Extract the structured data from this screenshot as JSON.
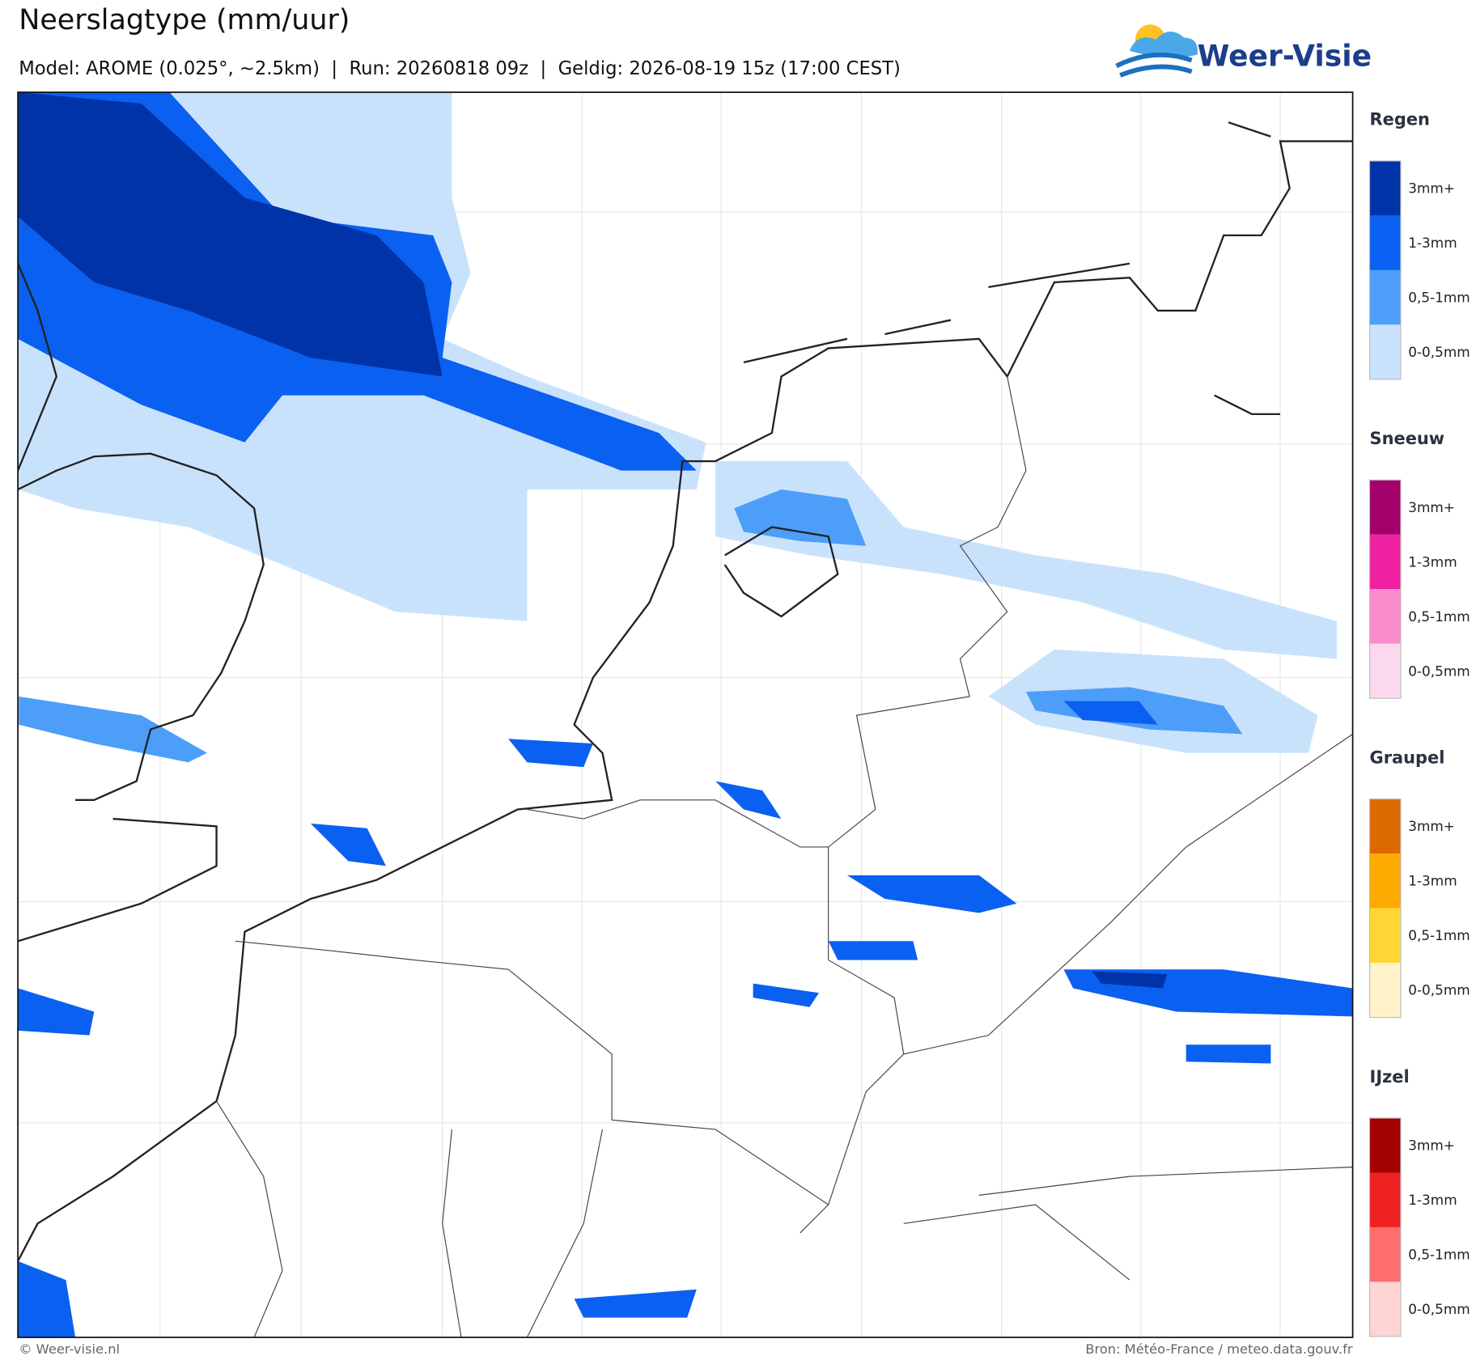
{
  "header": {
    "title": "Neerslagtype (mm/uur)",
    "subtitle": "Model: AROME (0.025°, ~2.5km)  |  Run: 20260818 09z  |  Geldig: 2026-08-19 15z (17:00 CEST)",
    "logo": "Weer-Visie"
  },
  "legend": {
    "levels": [
      "3mm+",
      "1-3mm",
      "0,5-1mm",
      "0-0,5mm"
    ],
    "sections": [
      {
        "name": "Regen",
        "colors": [
          "#0033a8",
          "#0a60f0",
          "#4c9ef8",
          "#c9e2fc"
        ]
      },
      {
        "name": "Sneeuw",
        "colors": [
          "#a3006b",
          "#f020a2",
          "#f98ccb",
          "#fcd8ee"
        ]
      },
      {
        "name": "Graupel",
        "colors": [
          "#dd6a00",
          "#ffaa00",
          "#ffd633",
          "#fff2c8"
        ]
      },
      {
        "name": "IJzel",
        "colors": [
          "#a30000",
          "#ee2222",
          "#ff6e6e",
          "#ffd4d4"
        ]
      }
    ]
  },
  "footer": {
    "left": "© Weer-visie.nl",
    "right": "Bron: Météo-France / meteo.data.gouv.fr"
  }
}
